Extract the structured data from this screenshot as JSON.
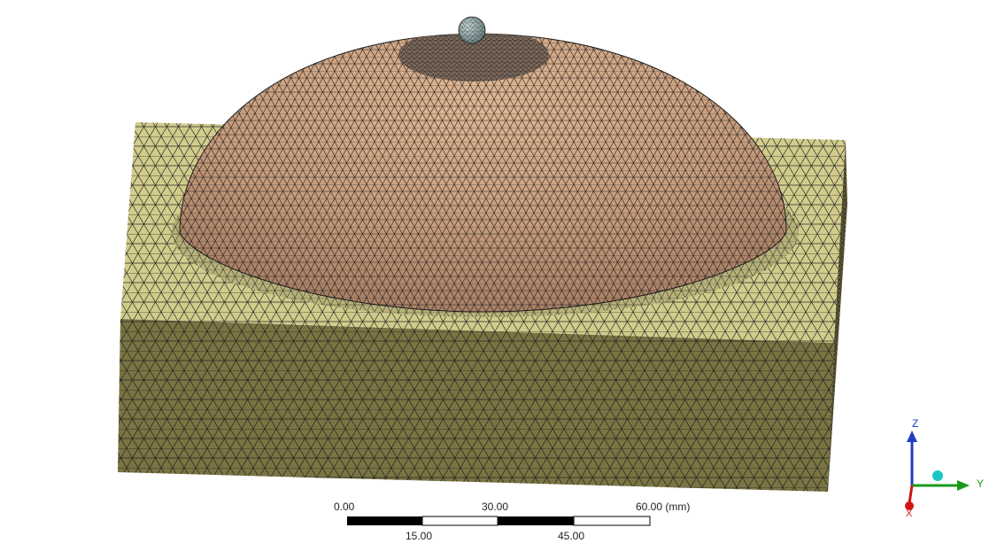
{
  "scale_bar": {
    "top_labels": [
      "0.00",
      "30.00",
      "60.00 (mm)"
    ],
    "bottom_labels": [
      "15.00",
      "45.00"
    ]
  },
  "triad": {
    "z_label": "Z",
    "y_label": "Y",
    "x_label": "X",
    "z_color": "#1f3ec4",
    "y_color": "#1a9a1a",
    "x_color": "#d01414",
    "iso_ball_color": "#19c7c7"
  },
  "model": {
    "block_top_color": "#d2cc8c",
    "block_front_color": "#7a7443",
    "block_side_color": "#5d5832",
    "dome_color": "#c9a283",
    "probe_color": "#8aa3a3",
    "mesh_line_color": "#1a1a1a"
  }
}
